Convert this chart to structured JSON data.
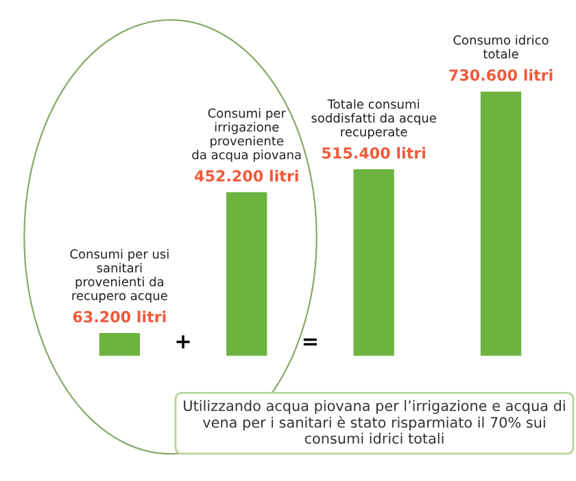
{
  "chart_data": {
    "type": "bar",
    "categories": [
      null,
      null,
      null,
      null
    ],
    "values": [
      63200,
      452200,
      515400,
      730600
    ],
    "value_labels": [
      "63.200 litri",
      "452.200 litri",
      "515.400 litri",
      "730.600 litri"
    ],
    "color": "#6db33f",
    "annotations": [
      "Consumi per usi\nsanitari\nprovenienti da\nrecupero acque",
      "Consumi per\nirrigazione\nproveniente\nda acqua piovana",
      "Totale consumi\nsoddisfatti da acque\nrecuperate",
      "Consumo idrico\ntotale",
      "+",
      "=",
      "Utilizzando acqua piovana per l’irrigazione e acqua di vena per i sanitari è stato risparmiato il 70% sui consumi idrici totali"
    ]
  }
}
